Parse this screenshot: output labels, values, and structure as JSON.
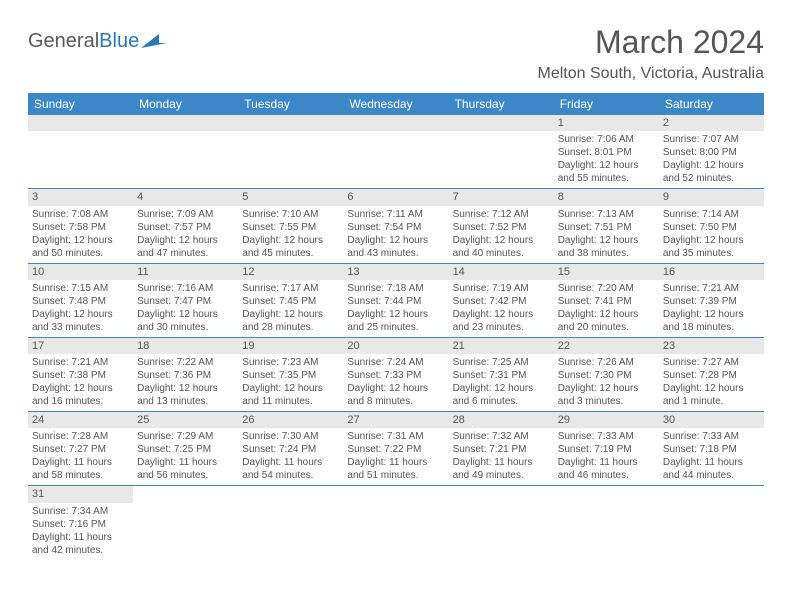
{
  "logo": {
    "text1": "General",
    "text2": "Blue"
  },
  "title": "March 2024",
  "location": "Melton South, Victoria, Australia",
  "colors": {
    "header_bg": "#3b87c8",
    "header_text": "#ffffff",
    "daynum_bg": "#e8e8e8",
    "row_border": "#3b87c8",
    "text": "#555555",
    "logo_blue": "#2a77bb",
    "page_bg": "#ffffff"
  },
  "fonts": {
    "title_size": 32,
    "location_size": 16,
    "header_size": 12,
    "body_size": 10
  },
  "day_headers": [
    "Sunday",
    "Monday",
    "Tuesday",
    "Wednesday",
    "Thursday",
    "Friday",
    "Saturday"
  ],
  "weeks": [
    [
      null,
      null,
      null,
      null,
      null,
      {
        "n": "1",
        "sr": "7:06 AM",
        "ss": "8:01 PM",
        "dl": "12 hours and 55 minutes."
      },
      {
        "n": "2",
        "sr": "7:07 AM",
        "ss": "8:00 PM",
        "dl": "12 hours and 52 minutes."
      }
    ],
    [
      {
        "n": "3",
        "sr": "7:08 AM",
        "ss": "7:58 PM",
        "dl": "12 hours and 50 minutes."
      },
      {
        "n": "4",
        "sr": "7:09 AM",
        "ss": "7:57 PM",
        "dl": "12 hours and 47 minutes."
      },
      {
        "n": "5",
        "sr": "7:10 AM",
        "ss": "7:55 PM",
        "dl": "12 hours and 45 minutes."
      },
      {
        "n": "6",
        "sr": "7:11 AM",
        "ss": "7:54 PM",
        "dl": "12 hours and 43 minutes."
      },
      {
        "n": "7",
        "sr": "7:12 AM",
        "ss": "7:52 PM",
        "dl": "12 hours and 40 minutes."
      },
      {
        "n": "8",
        "sr": "7:13 AM",
        "ss": "7:51 PM",
        "dl": "12 hours and 38 minutes."
      },
      {
        "n": "9",
        "sr": "7:14 AM",
        "ss": "7:50 PM",
        "dl": "12 hours and 35 minutes."
      }
    ],
    [
      {
        "n": "10",
        "sr": "7:15 AM",
        "ss": "7:48 PM",
        "dl": "12 hours and 33 minutes."
      },
      {
        "n": "11",
        "sr": "7:16 AM",
        "ss": "7:47 PM",
        "dl": "12 hours and 30 minutes."
      },
      {
        "n": "12",
        "sr": "7:17 AM",
        "ss": "7:45 PM",
        "dl": "12 hours and 28 minutes."
      },
      {
        "n": "13",
        "sr": "7:18 AM",
        "ss": "7:44 PM",
        "dl": "12 hours and 25 minutes."
      },
      {
        "n": "14",
        "sr": "7:19 AM",
        "ss": "7:42 PM",
        "dl": "12 hours and 23 minutes."
      },
      {
        "n": "15",
        "sr": "7:20 AM",
        "ss": "7:41 PM",
        "dl": "12 hours and 20 minutes."
      },
      {
        "n": "16",
        "sr": "7:21 AM",
        "ss": "7:39 PM",
        "dl": "12 hours and 18 minutes."
      }
    ],
    [
      {
        "n": "17",
        "sr": "7:21 AM",
        "ss": "7:38 PM",
        "dl": "12 hours and 16 minutes."
      },
      {
        "n": "18",
        "sr": "7:22 AM",
        "ss": "7:36 PM",
        "dl": "12 hours and 13 minutes."
      },
      {
        "n": "19",
        "sr": "7:23 AM",
        "ss": "7:35 PM",
        "dl": "12 hours and 11 minutes."
      },
      {
        "n": "20",
        "sr": "7:24 AM",
        "ss": "7:33 PM",
        "dl": "12 hours and 8 minutes."
      },
      {
        "n": "21",
        "sr": "7:25 AM",
        "ss": "7:31 PM",
        "dl": "12 hours and 6 minutes."
      },
      {
        "n": "22",
        "sr": "7:26 AM",
        "ss": "7:30 PM",
        "dl": "12 hours and 3 minutes."
      },
      {
        "n": "23",
        "sr": "7:27 AM",
        "ss": "7:28 PM",
        "dl": "12 hours and 1 minute."
      }
    ],
    [
      {
        "n": "24",
        "sr": "7:28 AM",
        "ss": "7:27 PM",
        "dl": "11 hours and 58 minutes."
      },
      {
        "n": "25",
        "sr": "7:29 AM",
        "ss": "7:25 PM",
        "dl": "11 hours and 56 minutes."
      },
      {
        "n": "26",
        "sr": "7:30 AM",
        "ss": "7:24 PM",
        "dl": "11 hours and 54 minutes."
      },
      {
        "n": "27",
        "sr": "7:31 AM",
        "ss": "7:22 PM",
        "dl": "11 hours and 51 minutes."
      },
      {
        "n": "28",
        "sr": "7:32 AM",
        "ss": "7:21 PM",
        "dl": "11 hours and 49 minutes."
      },
      {
        "n": "29",
        "sr": "7:33 AM",
        "ss": "7:19 PM",
        "dl": "11 hours and 46 minutes."
      },
      {
        "n": "30",
        "sr": "7:33 AM",
        "ss": "7:18 PM",
        "dl": "11 hours and 44 minutes."
      }
    ],
    [
      {
        "n": "31",
        "sr": "7:34 AM",
        "ss": "7:16 PM",
        "dl": "11 hours and 42 minutes."
      },
      null,
      null,
      null,
      null,
      null,
      null
    ]
  ],
  "labels": {
    "sunrise": "Sunrise:",
    "sunset": "Sunset:",
    "daylight": "Daylight:"
  }
}
